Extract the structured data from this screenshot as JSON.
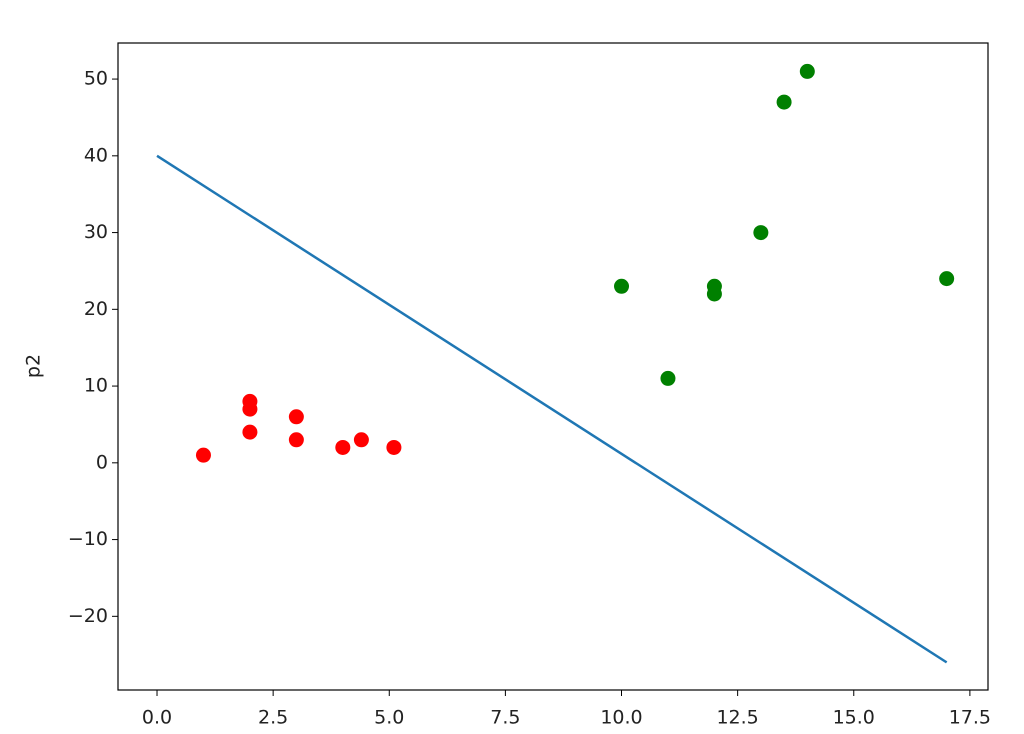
{
  "chart_data": {
    "type": "scatter",
    "ylabel": "p2",
    "xlim": [
      -0.84,
      17.89
    ],
    "ylim": [
      -29.6,
      54.7
    ],
    "xticks": [
      {
        "value": 0,
        "label": "0.0"
      },
      2.5,
      {
        "value": 5,
        "label": "5.0"
      },
      7.5,
      {
        "value": 10,
        "label": "10.0"
      },
      12.5,
      {
        "value": 15,
        "label": "15.0"
      },
      17.5
    ],
    "yticks": [
      {
        "value": -20,
        "label": "−20"
      },
      {
        "value": -10,
        "label": "−10"
      },
      0,
      10,
      20,
      30,
      40,
      50
    ],
    "series": [
      {
        "color": "#ff0000",
        "x": [
          1,
          2,
          2,
          2,
          3,
          3,
          4,
          4.4,
          5.1
        ],
        "values": [
          1,
          8,
          7,
          4,
          6,
          3,
          2,
          3,
          2
        ]
      },
      {
        "color": "#008000",
        "x": [
          10,
          11,
          12,
          12,
          13,
          13.5,
          14,
          17
        ],
        "values": [
          23,
          11,
          23,
          22,
          30,
          47,
          51,
          24
        ]
      },
      {
        "type": "line",
        "color": "#1f77b4",
        "x": [
          0,
          17
        ],
        "values": [
          40,
          -26
        ]
      }
    ]
  }
}
